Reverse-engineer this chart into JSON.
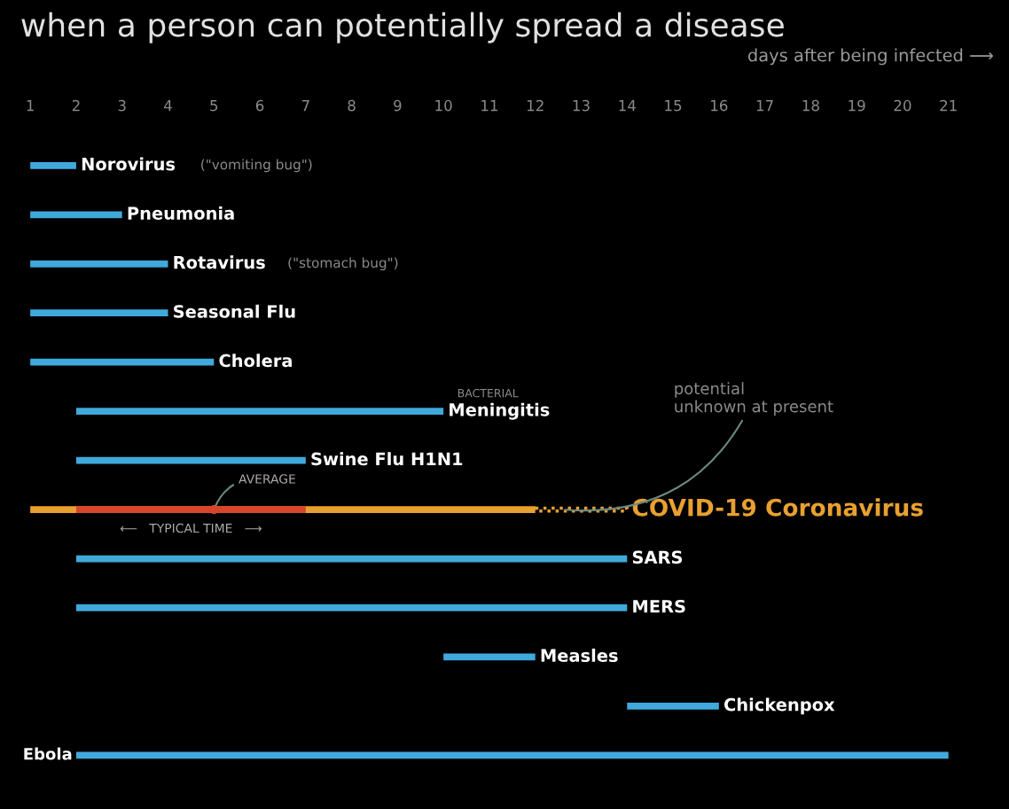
{
  "chart_data": {
    "type": "bar",
    "orientation": "horizontal",
    "title": "when a person can potentially spread a disease",
    "xlabel": "days after being infected ⟶",
    "categories": [
      "Norovirus",
      "Pneumonia",
      "Rotavirus",
      "Seasonal Flu",
      "Cholera",
      "Meningitis",
      "Swine Flu H1N1",
      "COVID-19 Coronavirus",
      "SARS",
      "MERS",
      "Measles",
      "Chickenpox",
      "Ebola"
    ],
    "series": [
      {
        "colors": [
          "#3fa9dc",
          "#3fa9dc",
          "#3fa9dc",
          "#3fa9dc",
          "#3fa9dc",
          "#3fa9dc",
          "#3fa9dc",
          "#e8a030",
          "#3fa9dc",
          "#3fa9dc",
          "#3fa9dc",
          "#3fa9dc",
          "#3fa9dc"
        ],
        "base": [
          1,
          1,
          1,
          1,
          1,
          2,
          2,
          1,
          2,
          2,
          10,
          14,
          2
        ],
        "values": [
          1,
          2,
          3,
          3,
          4,
          8,
          5,
          11,
          12,
          12,
          2,
          2,
          19
        ]
      },
      {
        "color": "#d9452b",
        "base": [
          null,
          null,
          null,
          null,
          null,
          null,
          null,
          2,
          null,
          null,
          null,
          null,
          null
        ],
        "values": [
          null,
          null,
          null,
          null,
          null,
          null,
          null,
          5,
          null,
          null,
          null,
          null,
          null
        ]
      },
      {
        "color": "#e8a030",
        "line_style": "dotted",
        "base": [
          null,
          null,
          null,
          null,
          null,
          null,
          null,
          12,
          null,
          null,
          null,
          null,
          null
        ],
        "values": [
          null,
          null,
          null,
          null,
          null,
          null,
          null,
          2,
          null,
          null,
          null,
          null,
          null
        ]
      },
      {
        "type": "scatter",
        "color": "#d9452b",
        "marker": "circle",
        "values": [
          null,
          null,
          null,
          null,
          null,
          null,
          null,
          5,
          null,
          null,
          null,
          null,
          null
        ]
      }
    ],
    "xlim": [
      1,
      21
    ],
    "xticks": [
      1,
      2,
      3,
      4,
      5,
      6,
      7,
      8,
      9,
      10,
      11,
      12,
      13,
      14,
      15,
      16,
      17,
      18,
      19,
      20,
      21
    ],
    "grid": false,
    "legend": false,
    "annotations": [
      "(\"vomiting bug\")",
      "(\"stomach bug\")",
      "BACTERIAL",
      {
        "text": "AVERAGE",
        "x": 5,
        "y": "COVID-19 Coronavirus"
      },
      {
        "text": "⟵   TYPICAL TIME   ⟶",
        "x": 4.5,
        "y": "COVID-19 Coronavirus"
      },
      {
        "text": "potential\nunknown at present",
        "x": 12.6,
        "y": "COVID-19 Coronavirus"
      }
    ]
  }
}
